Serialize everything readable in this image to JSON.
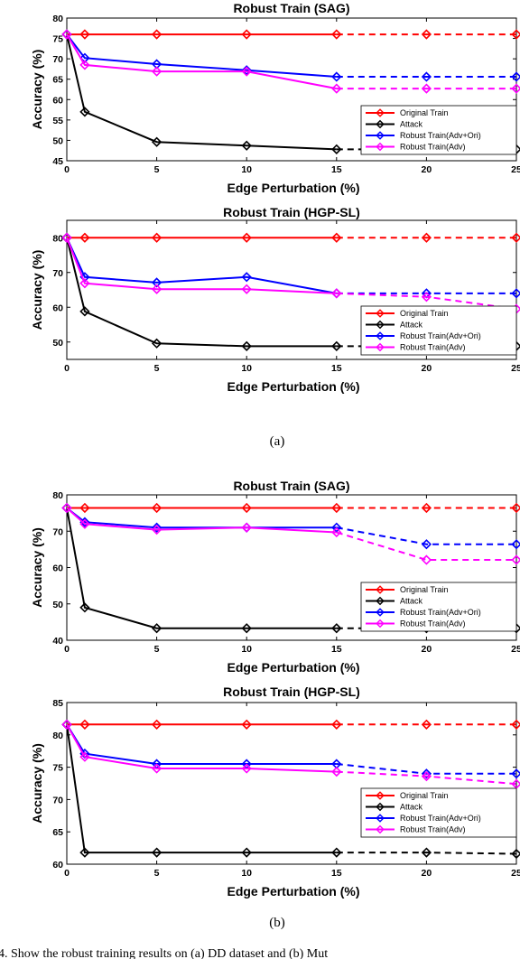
{
  "figure": {
    "subcaptions": [
      "(a)",
      "(b)"
    ],
    "caption_fragment": "4.  Show the robust training results on (a) DD dataset and (b) Mut"
  },
  "legend_labels": [
    "Original Train",
    "Attack",
    "Robust Train(Adv+Ori)",
    "Robust Train(Adv)"
  ],
  "series_colors": {
    "Original Train": "#ff0000",
    "Attack": "#000000",
    "Robust Train(Adv+Ori)": "#0000ff",
    "Robust Train(Adv)": "#ff00ff"
  },
  "chart_data": [
    {
      "type": "line",
      "title": "Robust Train (SAG)",
      "xlabel": "Edge Perturbation (%)",
      "ylabel": "Accuracy (%)",
      "x": [
        0,
        1,
        5,
        10,
        15,
        20,
        25
      ],
      "xticks": [
        0,
        5,
        10,
        15,
        20,
        25
      ],
      "xlim": [
        0,
        25
      ],
      "ylim": [
        45,
        80
      ],
      "yticks": [
        45,
        50,
        55,
        60,
        65,
        70,
        75,
        80
      ],
      "legend": "lower-right",
      "grid": false,
      "series": [
        {
          "name": "Original Train",
          "values": [
            76,
            76,
            76,
            76,
            76,
            76,
            76
          ]
        },
        {
          "name": "Attack",
          "values": [
            76,
            57,
            49.6,
            48.7,
            47.8,
            47.8,
            47.8
          ]
        },
        {
          "name": "Robust Train(Adv+Ori)",
          "values": [
            76,
            70.2,
            68.7,
            67.2,
            65.6,
            65.6,
            65.6
          ]
        },
        {
          "name": "Robust Train(Adv)",
          "values": [
            76,
            68.5,
            66.9,
            66.9,
            62.7,
            62.7,
            62.7
          ]
        }
      ]
    },
    {
      "type": "line",
      "title": "Robust Train (HGP-SL)",
      "xlabel": "Edge Perturbation (%)",
      "ylabel": "Accuracy (%)",
      "x": [
        0,
        1,
        5,
        10,
        15,
        20,
        25
      ],
      "xticks": [
        0,
        5,
        10,
        15,
        20,
        25
      ],
      "xlim": [
        0,
        25
      ],
      "ylim": [
        45,
        85
      ],
      "yticks": [
        50,
        60,
        70,
        80
      ],
      "legend": "lower-right",
      "grid": false,
      "series": [
        {
          "name": "Original Train",
          "values": [
            80,
            80,
            80,
            80,
            80,
            80,
            80
          ]
        },
        {
          "name": "Attack",
          "values": [
            80,
            58.8,
            49.6,
            48.8,
            48.8,
            48.8,
            48.8
          ]
        },
        {
          "name": "Robust Train(Adv+Ori)",
          "values": [
            80,
            68.7,
            67.1,
            68.7,
            64,
            64,
            64
          ]
        },
        {
          "name": "Robust Train(Adv)",
          "values": [
            80,
            66.9,
            65.2,
            65.2,
            64,
            63,
            59.5
          ]
        }
      ]
    },
    {
      "type": "line",
      "title": "Robust Train (SAG)",
      "xlabel": "Edge Perturbation (%)",
      "ylabel": "Accuracy (%)",
      "x": [
        0,
        1,
        5,
        10,
        15,
        20,
        25
      ],
      "xticks": [
        0,
        5,
        10,
        15,
        20,
        25
      ],
      "xlim": [
        0,
        25
      ],
      "ylim": [
        40,
        80
      ],
      "yticks": [
        40,
        50,
        60,
        70,
        80
      ],
      "legend": "lower-right",
      "grid": false,
      "series": [
        {
          "name": "Original Train",
          "values": [
            76.4,
            76.4,
            76.4,
            76.4,
            76.4,
            76.4,
            76.4
          ]
        },
        {
          "name": "Attack",
          "values": [
            76.4,
            49,
            43.3,
            43.3,
            43.3,
            43.3,
            43.3
          ]
        },
        {
          "name": "Robust Train(Adv+Ori)",
          "values": [
            76.4,
            72.5,
            71,
            71,
            71,
            66.4,
            66.4
          ]
        },
        {
          "name": "Robust Train(Adv)",
          "values": [
            76.4,
            72,
            70.4,
            71,
            69.7,
            62.1,
            62.1
          ]
        }
      ]
    },
    {
      "type": "line",
      "title": "Robust Train (HGP-SL)",
      "xlabel": "Edge Perturbation (%)",
      "ylabel": "Accuracy (%)",
      "x": [
        0,
        1,
        5,
        10,
        15,
        20,
        25
      ],
      "xticks": [
        0,
        5,
        10,
        15,
        20,
        25
      ],
      "xlim": [
        0,
        25
      ],
      "ylim": [
        60,
        85
      ],
      "yticks": [
        60,
        65,
        70,
        75,
        80,
        85
      ],
      "legend": "lower-right",
      "grid": false,
      "series": [
        {
          "name": "Original Train",
          "values": [
            81.6,
            81.6,
            81.6,
            81.6,
            81.6,
            81.6,
            81.6
          ]
        },
        {
          "name": "Attack",
          "values": [
            81.6,
            61.8,
            61.8,
            61.8,
            61.8,
            61.8,
            61.6
          ]
        },
        {
          "name": "Robust Train(Adv+Ori)",
          "values": [
            81.6,
            77.1,
            75.5,
            75.5,
            75.5,
            74,
            74
          ]
        },
        {
          "name": "Robust Train(Adv)",
          "values": [
            81.6,
            76.6,
            74.8,
            74.8,
            74.3,
            73.6,
            72.4
          ]
        }
      ]
    }
  ]
}
